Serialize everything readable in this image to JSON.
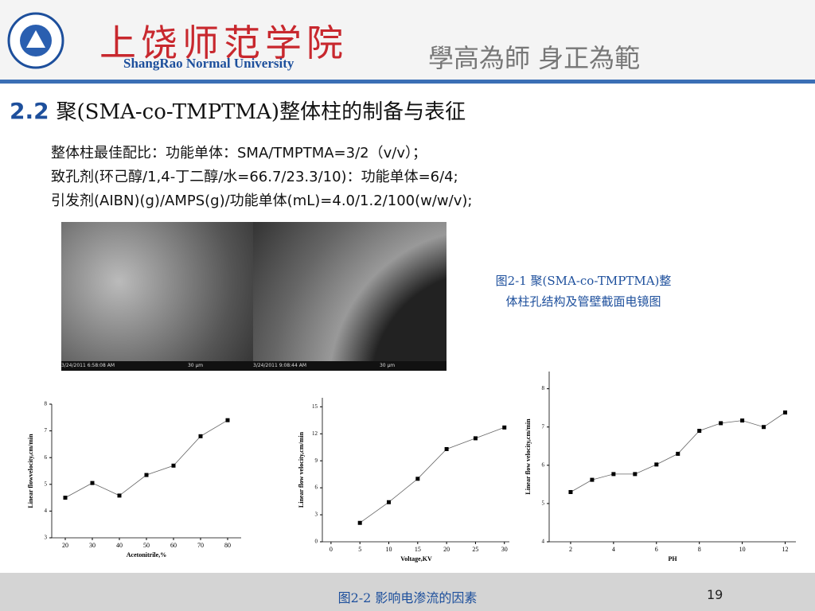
{
  "header": {
    "school_cn": "上饶师范学院",
    "school_en": "ShangRao Normal University",
    "motto": "學高為師 身正為範"
  },
  "title": {
    "number": "2.2",
    "text": "聚(SMA-co-TMPTMA)整体柱的制备与表征"
  },
  "body": [
    "整体柱最佳配比：功能单体：SMA/TMPTMA=3/2（v/v）；",
    "致孔剂(环己醇/1,4-丁二醇/水=66.7/23.3/10)：功能单体=6/4;",
    "引发剂(AIBN)(g)/AMPS(g)/功能单体(mL)=4.0/1.2/100(w/w/v);"
  ],
  "images": [
    {
      "date": "3/24/2011",
      "time": "6:58:08 AM",
      "scale": "30 μm"
    },
    {
      "date": "3/24/2011",
      "time": "9:08:44 AM",
      "scale": "30 μm"
    }
  ],
  "figure1_caption": [
    "图2-1  聚(SMA-co-TMPTMA)整",
    "体柱孔结构及管壁截面电镜图"
  ],
  "chart_data": [
    {
      "type": "line",
      "xlabel": "Acetonitrile,%",
      "ylabel": "Linear flowvelocity,cm/min",
      "x": [
        20,
        30,
        40,
        50,
        60,
        70,
        80
      ],
      "values": [
        4.5,
        5.05,
        4.58,
        5.35,
        5.7,
        6.8,
        7.4
      ],
      "xlim": [
        15,
        85
      ],
      "xticks": [
        20,
        30,
        40,
        50,
        60,
        70,
        80
      ],
      "ylim": [
        3,
        8
      ],
      "yticks": [
        3,
        4,
        5,
        6,
        7,
        8
      ],
      "color": "#000000"
    },
    {
      "type": "line",
      "xlabel": "Voltage,KV",
      "ylabel": "Linear flow velocity,cm/min",
      "x": [
        5,
        10,
        15,
        20,
        25,
        30
      ],
      "values": [
        2.1,
        4.4,
        7,
        10.3,
        11.5,
        12.7
      ],
      "xlim": [
        -1.5,
        31
      ],
      "xticks": [
        0,
        5,
        10,
        15,
        20,
        25,
        30
      ],
      "ylim": [
        0,
        16
      ],
      "yticks": [
        0,
        3,
        6,
        9,
        12,
        15
      ],
      "color": "#000000"
    },
    {
      "type": "line",
      "xlabel": "PH",
      "ylabel": "Linear flow velocity,cm/min",
      "x": [
        2,
        3,
        4,
        5,
        6,
        7,
        8,
        9,
        10,
        11,
        12
      ],
      "values": [
        5.3,
        5.62,
        5.77,
        5.77,
        6.02,
        6.3,
        6.9,
        7.1,
        7.17,
        7.0,
        7.38
      ],
      "xlim": [
        1,
        12.5
      ],
      "xticks": [
        2,
        4,
        6,
        8,
        10,
        12
      ],
      "ylim": [
        4,
        8.45
      ],
      "yticks": [
        4,
        5,
        6,
        7,
        8
      ],
      "color": "#000000"
    }
  ],
  "figure2_caption": "图2-2 影响电渗流的因素",
  "page_number": "19"
}
